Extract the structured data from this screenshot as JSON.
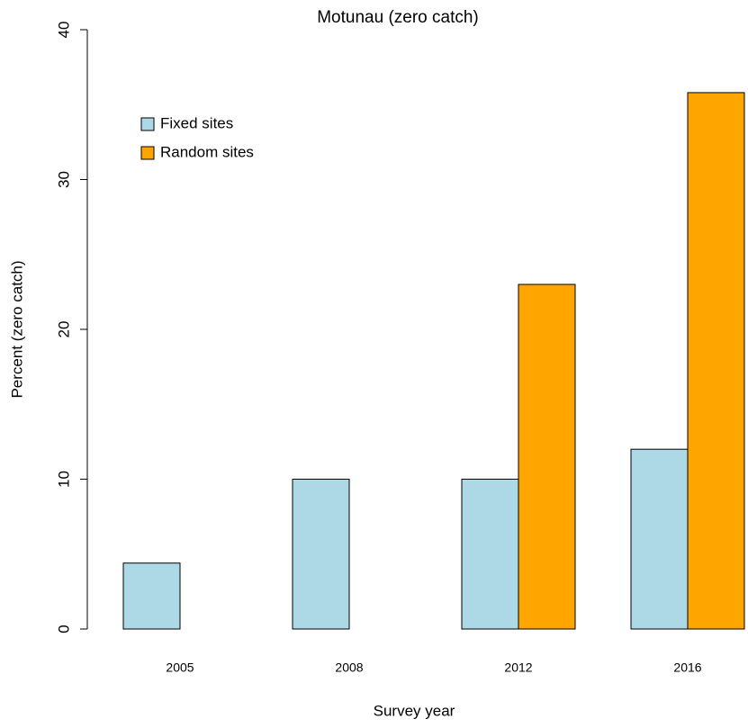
{
  "chart_data": {
    "type": "bar",
    "title": "Motunau (zero catch)",
    "x_label": "Survey year",
    "y_label": "Percent (zero catch)",
    "categories": [
      "2005",
      "2008",
      "2012",
      "2016"
    ],
    "series": [
      {
        "name": "Fixed sites",
        "color": "#add8e6",
        "values": [
          4.4,
          10,
          10,
          12
        ]
      },
      {
        "name": "Random sites",
        "color": "#ffa500",
        "values": [
          null,
          null,
          23,
          35.8
        ]
      }
    ],
    "ylim": [
      0,
      40
    ],
    "yticks": [
      0,
      10,
      20,
      30,
      40
    ],
    "legend": "top-left"
  }
}
